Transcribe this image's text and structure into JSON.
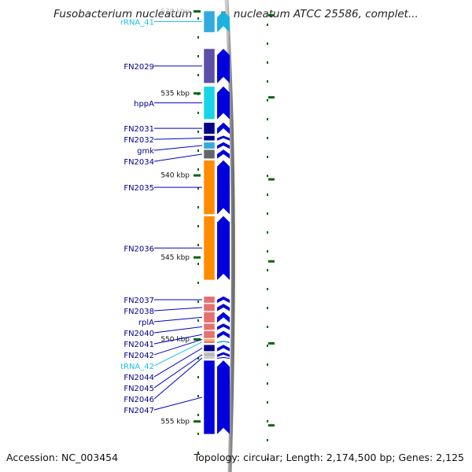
{
  "title": "Fusobacterium nucleatum subsp. nucleatum ATCC 25586, complet...",
  "accession": "Accession: NC_003454",
  "topology": "Topology: circular; Length: 2,174,500 bp; Genes: 2,125",
  "colors": {
    "blue": "#0000dd",
    "navy": "#00008b",
    "purple": "#5b4fa8",
    "cyan": "#19d4e6",
    "lightblue": "#33aadd",
    "gray": "#666666",
    "orange": "#ff8c00",
    "salmon": "#e57070",
    "lightgray": "#bbbbbb",
    "tick": "#006600",
    "rna": "#1ab3dd"
  },
  "scale": {
    "start_kbp": 530,
    "end_kbp": 556
  },
  "ticks": [
    {
      "kbp": 530,
      "label": "530 kbp"
    },
    {
      "kbp": 535,
      "label": "535 kbp"
    },
    {
      "kbp": 540,
      "label": "540 kbp"
    },
    {
      "kbp": 545,
      "label": "545 kbp"
    },
    {
      "kbp": 550,
      "label": "550 kbp"
    },
    {
      "kbp": 555,
      "label": "555 kbp"
    }
  ],
  "genes": [
    {
      "name": "rRNA_41",
      "type": "rna",
      "color": "lightblue",
      "start": 530.0,
      "end": 531.3,
      "strand": "+"
    },
    {
      "name": "FN2029",
      "type": "gene",
      "color": "purple",
      "start": 532.3,
      "end": 534.4,
      "strand": "+"
    },
    {
      "name": "hppA",
      "type": "gene",
      "color": "cyan",
      "start": 534.6,
      "end": 536.6,
      "strand": "+"
    },
    {
      "name": "FN2031",
      "type": "gene",
      "color": "navy",
      "start": 536.8,
      "end": 537.5,
      "strand": "+"
    },
    {
      "name": "FN2032",
      "type": "gene",
      "color": "navy",
      "start": 537.6,
      "end": 537.9,
      "strand": "+"
    },
    {
      "name": "gmk",
      "type": "gene",
      "color": "lightblue",
      "start": 538.0,
      "end": 538.4,
      "strand": "+"
    },
    {
      "name": "FN2034",
      "type": "gene",
      "color": "gray",
      "start": 538.45,
      "end": 539.0,
      "strand": "+"
    },
    {
      "name": "FN2035",
      "type": "gene",
      "color": "orange",
      "start": 539.1,
      "end": 542.4,
      "strand": "+"
    },
    {
      "name": "FN2036",
      "type": "gene",
      "color": "orange",
      "start": 542.5,
      "end": 546.4,
      "strand": "+"
    },
    {
      "name": "FN2037",
      "type": "gene",
      "color": "salmon",
      "start": 547.4,
      "end": 547.8,
      "strand": "+"
    },
    {
      "name": "FN2038",
      "type": "gene",
      "color": "salmon",
      "start": 547.85,
      "end": 548.3,
      "strand": "+"
    },
    {
      "name": "rplA",
      "type": "gene",
      "color": "salmon",
      "start": 548.35,
      "end": 549.0,
      "strand": "+"
    },
    {
      "name": "FN2040",
      "type": "gene",
      "color": "salmon",
      "start": 549.05,
      "end": 549.45,
      "strand": "+"
    },
    {
      "name": "FN2041",
      "type": "gene",
      "color": "salmon",
      "start": 549.5,
      "end": 549.95,
      "strand": "+"
    },
    {
      "name": "FN2042",
      "type": "gene",
      "color": "orange",
      "start": 550.0,
      "end": 550.05,
      "strand": "+"
    },
    {
      "name": "tRNA_42",
      "type": "rna",
      "color": "salmon",
      "start": 550.1,
      "end": 550.25,
      "strand": "+"
    },
    {
      "name": "FN2044",
      "type": "gene",
      "color": "navy",
      "start": 550.35,
      "end": 550.75,
      "strand": "+"
    },
    {
      "name": "FN2045",
      "type": "gene",
      "color": "lightgray",
      "start": 550.8,
      "end": 551.1,
      "strand": "+"
    },
    {
      "name": "FN2046",
      "type": "gene",
      "color": "lightgray",
      "start": 551.1,
      "end": 551.2,
      "strand": "+"
    },
    {
      "name": "FN2047",
      "type": "gene",
      "color": "blue",
      "start": 551.3,
      "end": 555.8,
      "strand": "+"
    }
  ]
}
